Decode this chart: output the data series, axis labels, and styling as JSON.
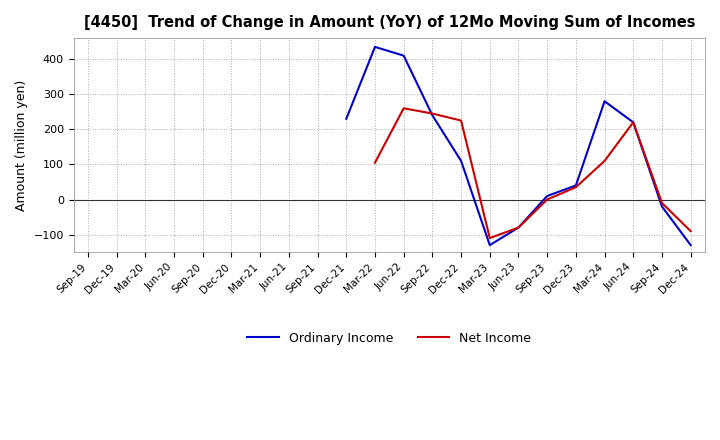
{
  "title": "[4450]  Trend of Change in Amount (YoY) of 12Mo Moving Sum of Incomes",
  "ylabel": "Amount (million yen)",
  "x_labels": [
    "Sep-19",
    "Dec-19",
    "Mar-20",
    "Jun-20",
    "Sep-20",
    "Dec-20",
    "Mar-21",
    "Jun-21",
    "Sep-21",
    "Dec-21",
    "Mar-22",
    "Jun-22",
    "Sep-22",
    "Dec-22",
    "Mar-23",
    "Jun-23",
    "Sep-23",
    "Dec-23",
    "Mar-24",
    "Jun-24",
    "Sep-24",
    "Dec-24"
  ],
  "ordinary_income": [
    null,
    null,
    null,
    null,
    null,
    null,
    null,
    null,
    null,
    230,
    435,
    410,
    240,
    110,
    -130,
    -80,
    10,
    40,
    280,
    220,
    -20,
    -130
  ],
  "net_income": [
    null,
    null,
    null,
    null,
    null,
    null,
    null,
    null,
    null,
    null,
    105,
    260,
    245,
    225,
    -110,
    -80,
    0,
    35,
    110,
    220,
    -10,
    -90
  ],
  "ordinary_color": "#0000cc",
  "net_color": "#cc0000",
  "ylim": [
    -150,
    460
  ],
  "yticks": [
    -100,
    0,
    100,
    200,
    300,
    400
  ],
  "bg_color": "#ffffff",
  "grid_color": "#888888"
}
